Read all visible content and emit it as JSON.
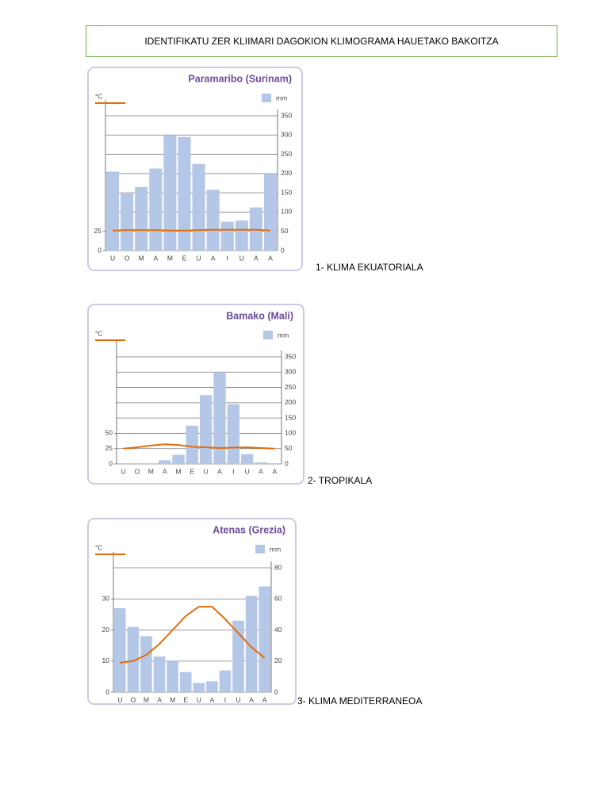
{
  "header": {
    "title": "IDENTIFIKATU ZER KLIIMARI DAGOKION KLIMOGRAMA HAUETAKO BAKOITZA"
  },
  "captions": [
    "1- KLIMA EKUATORIALA",
    "2- TROPIKALA",
    "3- KLIMA MEDITERRANEOA"
  ],
  "chart_data": [
    {
      "type": "combo",
      "title": "Paramaribo (Surinam)",
      "categories": [
        "U",
        "O",
        "M",
        "A",
        "M",
        "E",
        "U",
        "A",
        "I",
        "U",
        "A",
        "A"
      ],
      "series": [
        {
          "name": "mm",
          "type": "bar",
          "axis": "y2",
          "color": "#b4c7e7",
          "values": [
            205,
            148,
            165,
            213,
            300,
            295,
            225,
            158,
            75,
            78,
            112,
            200
          ]
        },
        {
          "name": "°C",
          "type": "line",
          "color": "#e36c0a",
          "values": [
            26,
            26.5,
            26.5,
            26.5,
            26,
            26,
            26.5,
            27,
            27,
            27,
            27,
            26
          ]
        }
      ],
      "ylim": [
        0,
        175
      ],
      "yticks": [
        0,
        25
      ],
      "y2lim": [
        0,
        350
      ],
      "y2ticks": [
        0,
        50,
        100,
        150,
        200,
        250,
        300,
        350
      ],
      "grid": true
    },
    {
      "type": "combo",
      "title": "Bamako (Mali)",
      "categories": [
        "U",
        "O",
        "M",
        "A",
        "M",
        "E",
        "U",
        "A",
        "I",
        "U",
        "A",
        "A"
      ],
      "series": [
        {
          "name": "mm",
          "type": "bar",
          "axis": "y2",
          "color": "#b4c7e7",
          "values": [
            0,
            0,
            2,
            12,
            30,
            125,
            225,
            300,
            195,
            32,
            5,
            0
          ]
        },
        {
          "name": "°C",
          "type": "line",
          "color": "#e36c0a",
          "values": [
            25,
            27,
            30,
            32,
            31,
            28,
            27,
            26,
            26.5,
            27,
            26,
            25
          ]
        }
      ],
      "ylim": [
        0,
        175
      ],
      "yticks": [
        0,
        25,
        50
      ],
      "y2lim": [
        0,
        350
      ],
      "y2ticks": [
        0,
        50,
        100,
        150,
        200,
        250,
        300,
        350
      ],
      "grid": true
    },
    {
      "type": "combo",
      "title": "Atenas (Grezia)",
      "categories": [
        "U",
        "O",
        "M",
        "A",
        "M",
        "E",
        "U",
        "A",
        "I",
        "U",
        "A",
        "A"
      ],
      "series": [
        {
          "name": "mm",
          "type": "bar",
          "axis": "y2",
          "color": "#b4c7e7",
          "values": [
            54,
            42,
            36,
            23,
            20,
            13,
            6,
            7,
            14,
            46,
            62,
            68
          ]
        },
        {
          "name": "°C",
          "type": "line",
          "color": "#e36c0a",
          "values": [
            9.5,
            10,
            12,
            15.5,
            20,
            24.5,
            27.5,
            27.5,
            23.5,
            19,
            14.5,
            11
          ]
        }
      ],
      "ylim": [
        0,
        40
      ],
      "yticks": [
        0,
        10,
        20,
        30
      ],
      "y2lim": [
        0,
        80
      ],
      "y2ticks": [
        0,
        20,
        40,
        60,
        80
      ],
      "grid": true
    }
  ]
}
